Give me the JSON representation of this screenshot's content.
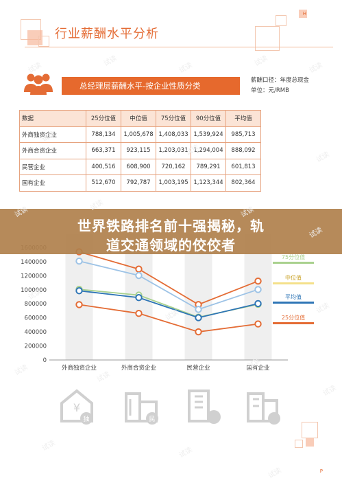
{
  "header": {
    "title": "行业薪酬水平分析",
    "corner": "H"
  },
  "banner": {
    "title": "总经理层薪酬水平-按企业性质分类"
  },
  "note": {
    "line1": "薪酬口径：年度总现金",
    "line2": "单位：元/RMB"
  },
  "table": {
    "headers": [
      "数据",
      "25分位值",
      "中位值",
      "75分位值",
      "90分位值",
      "平均值"
    ],
    "rows": [
      {
        "label": "外商独资企业",
        "values": [
          "788,134",
          "1,005,678",
          "1,408,033",
          "1,539,924",
          "985,713"
        ]
      },
      {
        "label": "外商合资企业",
        "values": [
          "663,371",
          "923,115",
          "1,203,031",
          "1,294,004",
          "888,092"
        ]
      },
      {
        "label": "民营企业",
        "values": [
          "400,516",
          "608,900",
          "720,162",
          "789,291",
          "601,813"
        ]
      },
      {
        "label": "国有企业",
        "values": [
          "512,670",
          "792,787",
          "1,003,195",
          "1,123,344",
          "802,364"
        ]
      }
    ]
  },
  "overlay": {
    "line1": "世界铁路排名前十强揭秘，轨",
    "line2": "道交通领域的佼佼者"
  },
  "chart_data": {
    "type": "line",
    "categories": [
      "外商独资企业",
      "外商合资企业",
      "民营企业",
      "国有企业"
    ],
    "y_ticks": [
      "0",
      "200000",
      "400000",
      "600000",
      "800000",
      "1000000",
      "1200000",
      "1400000",
      "1600000"
    ],
    "ylim": [
      0,
      1800000
    ],
    "series": [
      {
        "name": "90分位值",
        "color": "#e46c35",
        "values": [
          1539924,
          1294004,
          789291,
          1123344
        ]
      },
      {
        "name": "75分位值",
        "color": "#9dc3e6",
        "values": [
          1408033,
          1203031,
          720162,
          1003195
        ]
      },
      {
        "name": "中位值",
        "color": "#a9d18e",
        "values": [
          1005678,
          923115,
          608900,
          792787
        ]
      },
      {
        "name": "平均值",
        "color": "#2e75b6",
        "values": [
          985713,
          888092,
          601813,
          802364
        ]
      },
      {
        "name": "25分位值",
        "color": "#e46c35",
        "values": [
          788134,
          663371,
          400516,
          512670
        ]
      }
    ],
    "legend_visible": [
      {
        "name": "75分位值",
        "color": "#a9d18e",
        "text_color": "#a9d18e"
      },
      {
        "name": "中位值",
        "color": "#f4e08a",
        "text_color": "#c9a227"
      },
      {
        "name": "平均值",
        "color": "#2e75b6",
        "text_color": "#2e75b6"
      },
      {
        "name": "25分位值",
        "color": "#e46c35",
        "text_color": "#e46c35"
      }
    ]
  },
  "bottom_icons": [
    {
      "icon": "foreign-owned-building-icon",
      "glyph": "独"
    },
    {
      "icon": "joint-venture-building-icon",
      "glyph": "民"
    },
    {
      "icon": "private-building-icon",
      "glyph": ""
    },
    {
      "icon": "state-owned-building-icon",
      "glyph": ""
    }
  ],
  "page_number": "P",
  "watermark": "试读"
}
